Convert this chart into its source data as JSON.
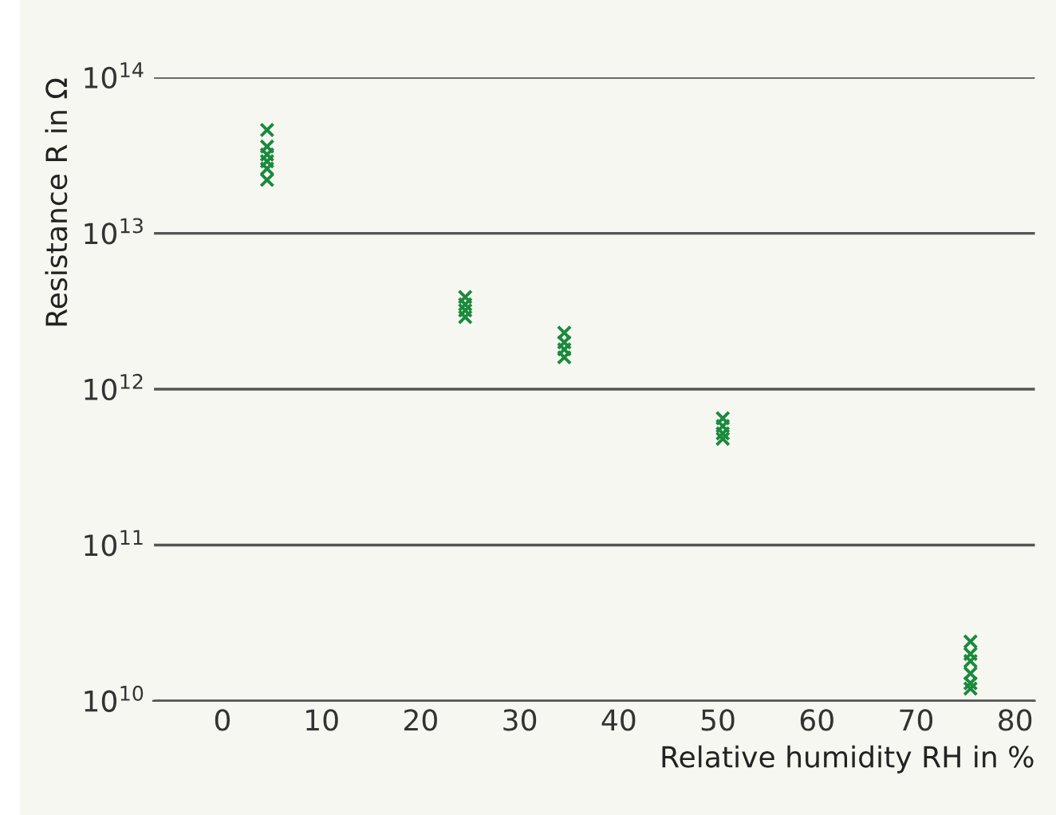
{
  "chart_data": {
    "type": "scatter",
    "xlabel": "Relative humidity RH in %",
    "ylabel": "Resistance R in Ω",
    "x": [
      4.5,
      4.5,
      4.5,
      4.5,
      4.5,
      4.5,
      24.5,
      24.5,
      24.5,
      24.5,
      34.5,
      34.5,
      34.5,
      34.5,
      50.5,
      50.5,
      50.5,
      50.5,
      75.5,
      75.5,
      75.5,
      75.5,
      75.5,
      75.5
    ],
    "series": [
      {
        "color": "#1a8a3c",
        "values": [
          46000000000000.0,
          36000000000000.0,
          32000000000000.0,
          29000000000000.0,
          26000000000000.0,
          22000000000000.0,
          3900000000000.0,
          3500000000000.0,
          3200000000000.0,
          2900000000000.0,
          2300000000000.0,
          2000000000000.0,
          1800000000000.0,
          1600000000000.0,
          650000000000.0,
          580000000000.0,
          520000000000.0,
          480000000000.0,
          24000000000.0,
          20000000000.0,
          18000000000.0,
          15000000000.0,
          13000000000.0,
          12000000000.0
        ]
      }
    ],
    "log": "y",
    "marker": "cross",
    "grid": "y",
    "xlim": [
      -7,
      82
    ],
    "xticks": [
      0,
      10,
      20,
      30,
      40,
      50,
      60,
      70,
      80
    ],
    "ylim": [
      10000000000.0,
      100000000000000.0
    ],
    "yticks": [
      {
        "value": 10000000000.0,
        "label": "10$^{10}$"
      },
      {
        "value": 100000000000.0,
        "label": "10$^{11}$"
      },
      {
        "value": 1000000000000.0,
        "label": "10$^{12}$"
      },
      {
        "value": 10000000000000.0,
        "label": "10$^{13}$"
      },
      {
        "value": 100000000000000.0,
        "label": "10$^{14}$"
      }
    ]
  }
}
